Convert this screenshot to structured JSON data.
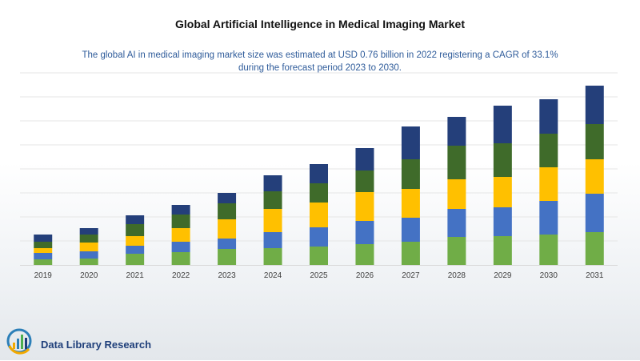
{
  "chart_data": {
    "type": "bar",
    "stacked": true,
    "title": "Global Artificial Intelligence in Medical Imaging Market",
    "subtitle": "The global AI in medical imaging market size was estimated at USD 0.76 billion in 2022 registering a CAGR of 33.1% during the forecast period 2023 to 2030.",
    "categories": [
      "2019",
      "2020",
      "2021",
      "2022",
      "2023",
      "2024",
      "2025",
      "2026",
      "2027",
      "2028",
      "2029",
      "2030",
      "2031"
    ],
    "series": [
      {
        "color": "#70ad47",
        "values": [
          7,
          8,
          14,
          16,
          20,
          21,
          23,
          26,
          29,
          35,
          36,
          38,
          41
        ]
      },
      {
        "color": "#4472c4",
        "values": [
          8,
          9,
          10,
          13,
          13,
          20,
          24,
          29,
          30,
          35,
          36,
          42,
          48
        ]
      },
      {
        "color": "#ffc000",
        "values": [
          6,
          11,
          12,
          17,
          24,
          29,
          31,
          36,
          36,
          37,
          38,
          42,
          43
        ]
      },
      {
        "color": "#3f6b2a",
        "values": [
          8,
          10,
          15,
          17,
          20,
          22,
          24,
          27,
          37,
          42,
          42,
          42,
          44
        ]
      },
      {
        "color": "#243f7a",
        "values": [
          9,
          8,
          11,
          12,
          13,
          20,
          24,
          28,
          41,
          36,
          47,
          43,
          48
        ]
      }
    ],
    "grid": true,
    "legend": "none"
  },
  "logo": {
    "text": "Data Library Research"
  },
  "colors": {
    "axis": "#d9d9d9",
    "gridline": "#e6e6e6",
    "tick_label": "#404040"
  }
}
